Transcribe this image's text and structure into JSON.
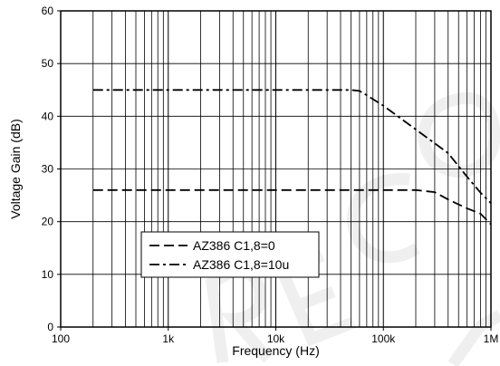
{
  "chart_data": {
    "type": "line",
    "title": "",
    "xlabel": "Frequency (Hz)",
    "ylabel": "Voltage Gain (dB)",
    "xscale": "log",
    "xlim": [
      100,
      1000000
    ],
    "ylim": [
      0,
      60
    ],
    "x_ticks": [
      {
        "value": 100,
        "label": "100"
      },
      {
        "value": 1000,
        "label": "1k"
      },
      {
        "value": 10000,
        "label": "10k"
      },
      {
        "value": 100000,
        "label": "100k"
      },
      {
        "value": 1000000,
        "label": "1M"
      }
    ],
    "y_ticks": [
      0,
      10,
      20,
      30,
      40,
      50,
      60
    ],
    "grid": true,
    "legend_position": "lower-left",
    "series": [
      {
        "name": "AZ386 C1,8=0",
        "style": "dashed",
        "x": [
          200,
          1000,
          10000,
          100000,
          200000,
          300000,
          400000,
          600000,
          800000,
          1000000
        ],
        "y": [
          26,
          26,
          26,
          26,
          26,
          25.6,
          24.2,
          22.5,
          21.5,
          19.5
        ]
      },
      {
        "name": "AZ386 C1,8=10u",
        "style": "dash-dot",
        "x": [
          200,
          1000,
          10000,
          50000,
          60000,
          70000,
          100000,
          200000,
          400000,
          600000,
          800000,
          1000000
        ],
        "y": [
          45,
          45,
          45,
          45,
          44.8,
          44,
          42,
          37.5,
          33,
          28.5,
          25.5,
          23.5
        ]
      }
    ]
  }
}
